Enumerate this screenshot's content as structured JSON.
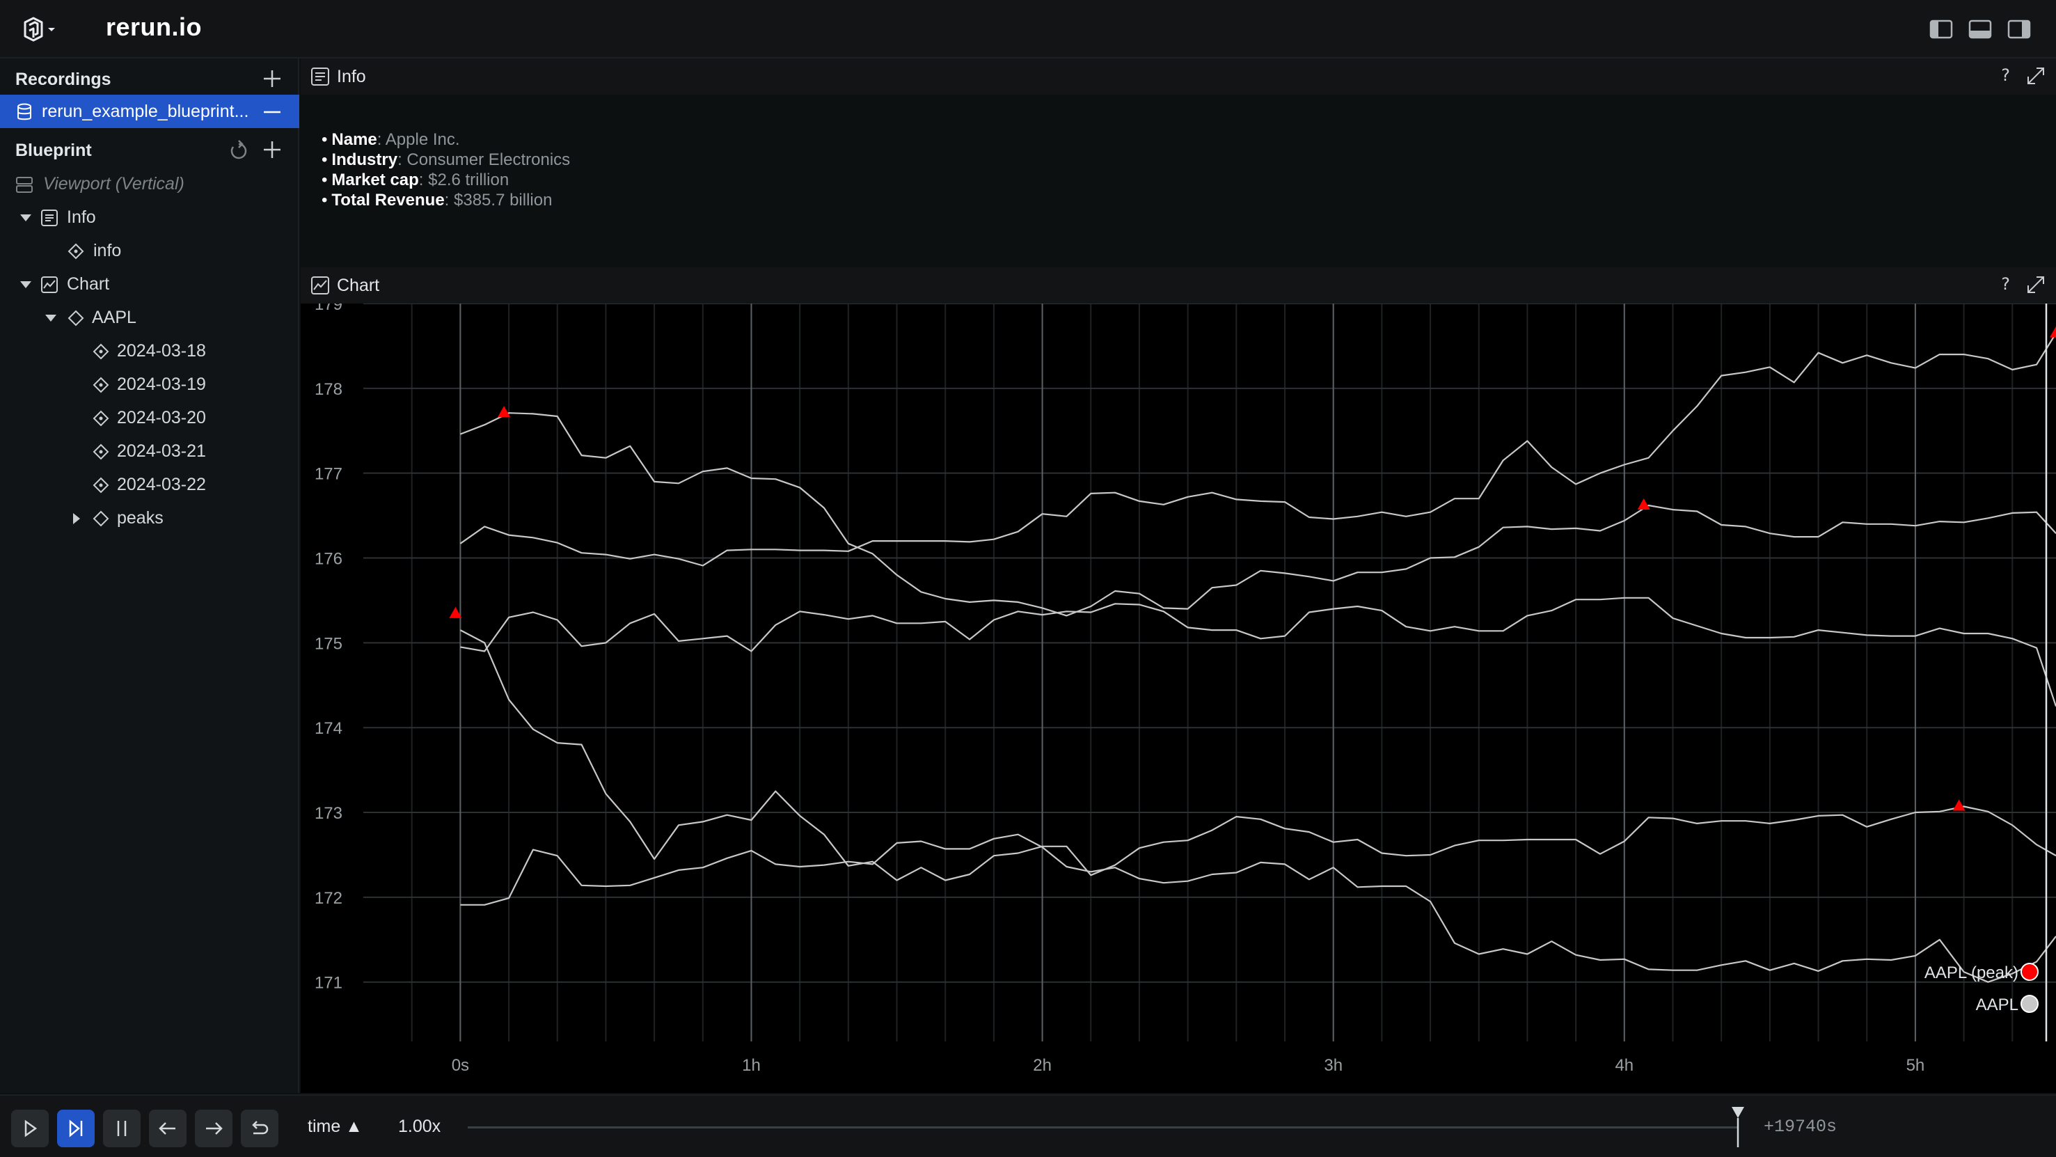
{
  "app": {
    "title": "rerun.io"
  },
  "left_panel": {
    "recordings": {
      "title": "Recordings",
      "items": [
        {
          "label": "rerun_example_blueprint..."
        }
      ]
    },
    "blueprint": {
      "title": "Blueprint",
      "tree": [
        {
          "label": "Viewport (Vertical)",
          "italic": true
        },
        {
          "label": "Info"
        },
        {
          "label": "info"
        },
        {
          "label": "Chart"
        },
        {
          "label": "AAPL"
        },
        {
          "label": "2024-03-18"
        },
        {
          "label": "2024-03-19"
        },
        {
          "label": "2024-03-20"
        },
        {
          "label": "2024-03-21"
        },
        {
          "label": "2024-03-22"
        },
        {
          "label": "peaks"
        }
      ]
    }
  },
  "info_view": {
    "title": "Info",
    "help": "?",
    "items": [
      {
        "key": "Name",
        "value": ": Apple Inc."
      },
      {
        "key": "Industry",
        "value": ": Consumer Electronics"
      },
      {
        "key": "Market cap",
        "value": ": $2.6 trillion"
      },
      {
        "key": "Total Revenue",
        "value": ": $385.7 billion"
      }
    ]
  },
  "chart_view": {
    "title": "Chart",
    "help": "?"
  },
  "chart_data": {
    "type": "line",
    "title": "",
    "xlabel": "",
    "ylabel": "",
    "x_ticks": [
      "0s",
      "1h",
      "2h",
      "3h",
      "4h",
      "5h"
    ],
    "y_ticks": [
      171,
      172,
      173,
      174,
      175,
      176,
      177,
      178,
      179
    ],
    "xlim_seconds": [
      -1200,
      19740
    ],
    "ylim": [
      170.3,
      179.0
    ],
    "grid": true,
    "legend_position": "bottom-right",
    "legend": [
      {
        "name": "AAPL (peak)",
        "color": "#ff0000"
      },
      {
        "name": "AAPL",
        "color": "#c8c8c8"
      }
    ],
    "series": [
      {
        "name": "2024-03-18",
        "x_minutes": [
          0,
          5,
          10,
          15,
          20,
          25,
          30,
          35,
          40,
          45,
          50,
          55,
          60,
          65,
          70,
          75,
          80,
          85,
          90,
          95,
          100,
          105,
          110,
          115,
          120,
          125,
          130,
          135,
          140,
          145,
          150,
          155,
          160,
          165,
          170,
          175,
          180,
          185,
          190,
          195,
          200,
          205,
          210,
          215,
          220,
          225,
          230,
          235,
          240,
          245,
          250,
          255,
          260,
          265,
          270,
          275,
          280,
          285,
          290,
          295,
          300,
          305,
          310,
          315,
          320,
          325,
          329
        ],
        "values": [
          177.46,
          177.57,
          177.71,
          177.7,
          177.67,
          177.21,
          177.18,
          177.32,
          176.9,
          176.88,
          177.02,
          177.06,
          176.94,
          176.93,
          176.83,
          176.59,
          176.17,
          176.05,
          175.8,
          175.6,
          175.52,
          175.48,
          175.5,
          175.48,
          175.41,
          175.32,
          175.43,
          175.61,
          175.58,
          175.41,
          175.4,
          175.65,
          175.68,
          175.85,
          175.82,
          175.78,
          175.73,
          175.83,
          175.83,
          175.87,
          176.0,
          176.01,
          176.13,
          176.36,
          176.37,
          176.34,
          176.35,
          176.32,
          176.44,
          176.62,
          176.57,
          176.55,
          176.39,
          176.37,
          176.29,
          176.25,
          176.25,
          176.42,
          176.4,
          176.4,
          176.38,
          176.43,
          176.42,
          176.47,
          176.53,
          176.54,
          176.29
        ],
        "peaks": [
          {
            "x_minutes": 9,
            "value": 177.71
          },
          {
            "x_minutes": 244,
            "value": 176.62
          }
        ]
      },
      {
        "name": "2024-03-19",
        "x_minutes": [
          0,
          5,
          10,
          15,
          20,
          25,
          30,
          35,
          40,
          45,
          50,
          55,
          60,
          65,
          70,
          75,
          80,
          85,
          90,
          95,
          100,
          105,
          110,
          115,
          120,
          125,
          130,
          135,
          140,
          145,
          150,
          155,
          160,
          165,
          170,
          175,
          180,
          185,
          190,
          195,
          200,
          205,
          210,
          215,
          220,
          225,
          230,
          235,
          240,
          245,
          250,
          255,
          260,
          265,
          270,
          275,
          280,
          285,
          290,
          295,
          300,
          305,
          310,
          315,
          320,
          325,
          329
        ],
        "values": [
          176.17,
          176.37,
          176.27,
          176.24,
          176.18,
          176.06,
          176.04,
          175.99,
          176.04,
          175.99,
          175.91,
          176.09,
          176.1,
          176.1,
          176.09,
          176.09,
          176.08,
          176.2,
          176.2,
          176.2,
          176.2,
          176.19,
          176.22,
          176.31,
          176.52,
          176.49,
          176.76,
          176.77,
          176.67,
          176.63,
          176.72,
          176.77,
          176.69,
          176.67,
          176.66,
          176.48,
          176.46,
          176.49,
          176.54,
          176.49,
          176.54,
          176.7,
          176.7,
          177.15,
          177.38,
          177.07,
          176.87,
          177.0,
          177.1,
          177.18,
          177.5,
          177.79,
          178.15,
          178.19,
          178.25,
          178.07,
          178.42,
          178.3,
          178.39,
          178.3,
          178.24,
          178.4,
          178.4,
          178.35,
          178.22,
          178.28,
          178.65
        ],
        "peaks": [
          {
            "x_minutes": 329,
            "value": 178.65
          }
        ]
      },
      {
        "name": "2024-03-20",
        "x_minutes": [
          0,
          5,
          10,
          15,
          20,
          25,
          30,
          35,
          40,
          45,
          50,
          55,
          60,
          65,
          70,
          75,
          80,
          85,
          90,
          95,
          100,
          105,
          110,
          115,
          120,
          125,
          130,
          135,
          140,
          145,
          150,
          155,
          160,
          165,
          170,
          175,
          180,
          185,
          190,
          195,
          200,
          205,
          210,
          215,
          220,
          225,
          230,
          235,
          240,
          245,
          250,
          255,
          260,
          265,
          270,
          275,
          280,
          285,
          290,
          295,
          300,
          305,
          310,
          315,
          320,
          325,
          329
        ],
        "values": [
          174.95,
          174.9,
          175.3,
          175.36,
          175.27,
          174.96,
          175.0,
          175.23,
          175.34,
          175.02,
          175.05,
          175.08,
          174.9,
          175.21,
          175.37,
          175.33,
          175.28,
          175.32,
          175.23,
          175.23,
          175.25,
          175.04,
          175.27,
          175.37,
          175.33,
          175.37,
          175.36,
          175.46,
          175.45,
          175.37,
          175.18,
          175.15,
          175.15,
          175.05,
          175.08,
          175.36,
          175.4,
          175.43,
          175.38,
          175.19,
          175.14,
          175.19,
          175.14,
          175.14,
          175.32,
          175.38,
          175.51,
          175.51,
          175.53,
          175.53,
          175.29,
          175.2,
          175.11,
          175.06,
          175.06,
          175.07,
          175.15,
          175.12,
          175.09,
          175.08,
          175.08,
          175.17,
          175.11,
          175.11,
          175.05,
          174.94,
          174.25
        ],
        "peaks": [
          {
            "x_minutes": -1,
            "value": 175.34
          }
        ]
      },
      {
        "name": "2024-03-21",
        "x_minutes": [
          0,
          5,
          10,
          15,
          20,
          25,
          30,
          35,
          40,
          45,
          50,
          55,
          60,
          65,
          70,
          75,
          80,
          85,
          90,
          95,
          100,
          105,
          110,
          115,
          120,
          125,
          130,
          135,
          140,
          145,
          150,
          155,
          160,
          165,
          170,
          175,
          180,
          185,
          190,
          195,
          200,
          205,
          210,
          215,
          220,
          225,
          230,
          235,
          240,
          245,
          250,
          255,
          260,
          265,
          270,
          275,
          280,
          285,
          290,
          295,
          300,
          305,
          310,
          315,
          320,
          325,
          329
        ],
        "values": [
          175.15,
          175.0,
          174.33,
          173.98,
          173.82,
          173.8,
          173.22,
          172.89,
          172.45,
          172.85,
          172.89,
          172.97,
          172.91,
          173.25,
          172.96,
          172.74,
          172.37,
          172.42,
          172.2,
          172.35,
          172.2,
          172.27,
          172.49,
          172.52,
          172.6,
          172.6,
          172.26,
          172.38,
          172.58,
          172.65,
          172.67,
          172.79,
          172.95,
          172.92,
          172.81,
          172.77,
          172.65,
          172.68,
          172.52,
          172.49,
          172.5,
          172.61,
          172.67,
          172.67,
          172.68,
          172.68,
          172.68,
          172.51,
          172.66,
          172.94,
          172.93,
          172.87,
          172.9,
          172.9,
          172.87,
          172.91,
          172.96,
          172.97,
          172.83,
          172.92,
          173.0,
          173.01,
          173.07,
          173.01,
          172.85,
          172.62,
          172.49
        ],
        "peaks": [
          {
            "x_minutes": 309,
            "value": 173.07
          }
        ]
      },
      {
        "name": "2024-03-22",
        "x_minutes": [
          0,
          5,
          10,
          15,
          20,
          25,
          30,
          35,
          40,
          45,
          50,
          55,
          60,
          65,
          70,
          75,
          80,
          85,
          90,
          95,
          100,
          105,
          110,
          115,
          120,
          125,
          130,
          135,
          140,
          145,
          150,
          155,
          160,
          165,
          170,
          175,
          180,
          185,
          190,
          195,
          200,
          205,
          210,
          215,
          220,
          225,
          230,
          235,
          240,
          245,
          250,
          255,
          260,
          265,
          270,
          275,
          280,
          285,
          290,
          295,
          300,
          305,
          310,
          315,
          320,
          325,
          329
        ],
        "values": [
          171.91,
          171.91,
          171.99,
          172.56,
          172.49,
          172.14,
          172.13,
          172.14,
          172.23,
          172.32,
          172.35,
          172.46,
          172.55,
          172.39,
          172.36,
          172.38,
          172.42,
          172.39,
          172.64,
          172.66,
          172.57,
          172.57,
          172.69,
          172.74,
          172.59,
          172.36,
          172.3,
          172.35,
          172.22,
          172.17,
          172.19,
          172.27,
          172.29,
          172.41,
          172.39,
          172.21,
          172.35,
          172.12,
          172.13,
          172.13,
          171.95,
          171.46,
          171.33,
          171.39,
          171.33,
          171.48,
          171.32,
          171.26,
          171.27,
          171.15,
          171.14,
          171.14,
          171.2,
          171.25,
          171.14,
          171.22,
          171.13,
          171.25,
          171.27,
          171.26,
          171.31,
          171.5,
          171.12,
          171.0,
          171.1,
          171.24,
          171.54
        ],
        "peaks": []
      }
    ]
  },
  "timebar": {
    "timeline": "time ▲",
    "speed": "1.00x",
    "readout": "+19740s"
  }
}
